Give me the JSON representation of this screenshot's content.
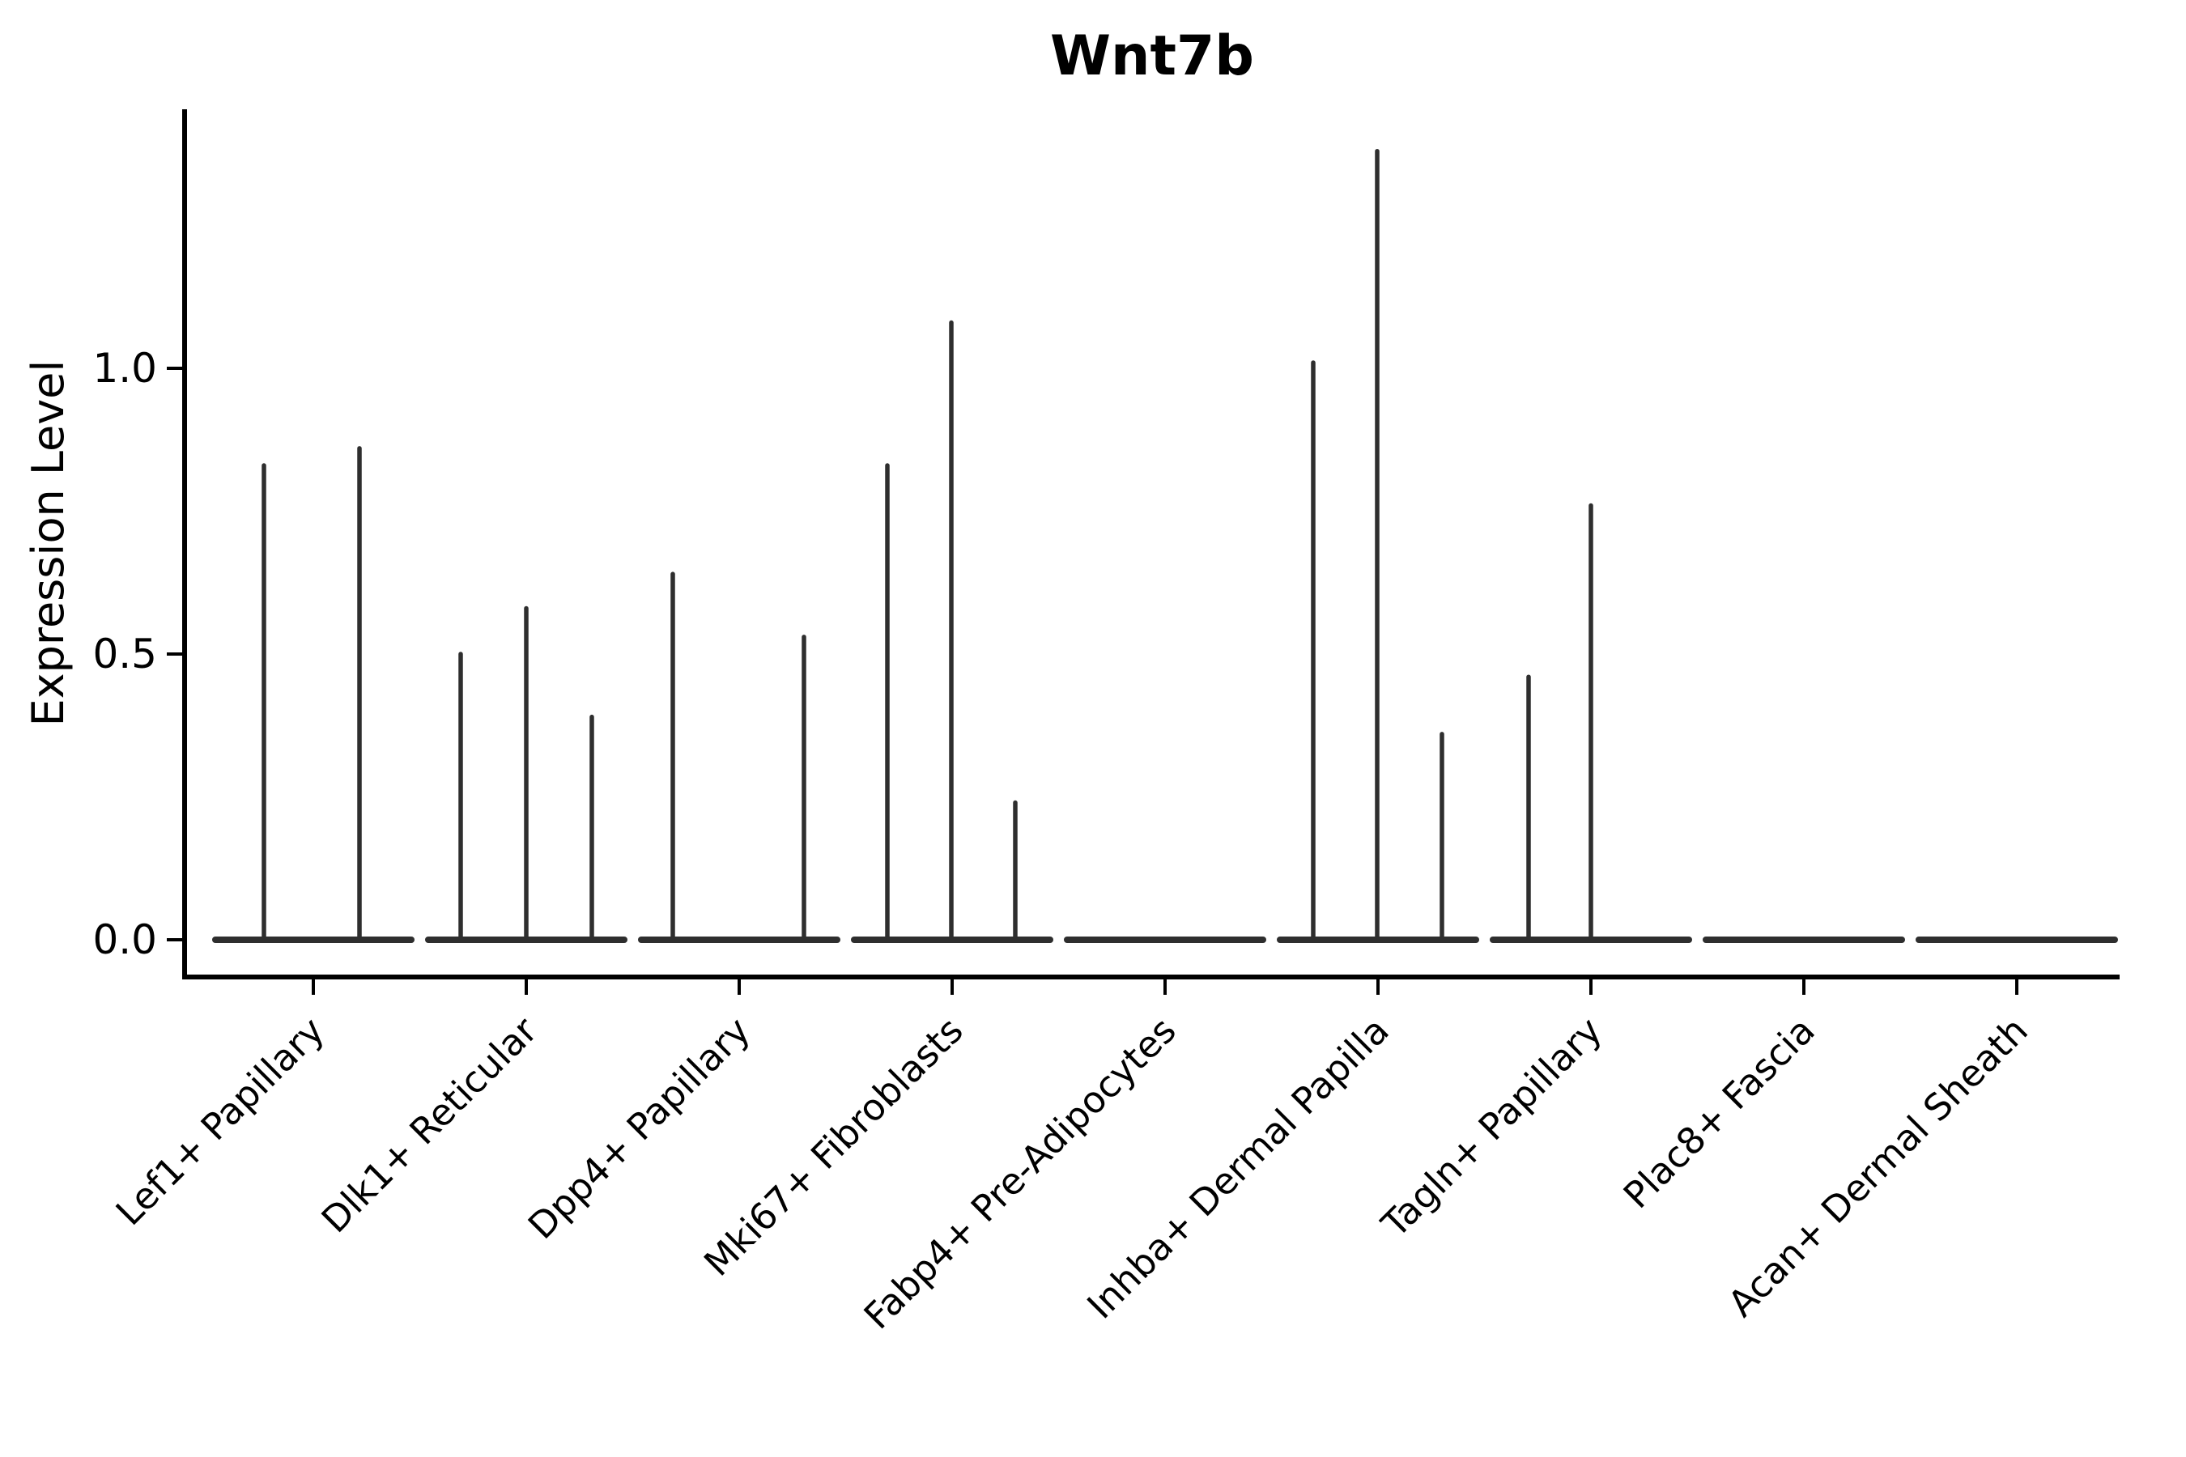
{
  "chart_data": {
    "type": "violin",
    "title": "Wnt7b",
    "ylabel": "Expression Level",
    "xlabel": "",
    "grid": false,
    "legend": "none",
    "ylim": [
      -0.07,
      1.47
    ],
    "yticks": [
      {
        "label": "0.0",
        "value": 0.0
      },
      {
        "label": "0.5",
        "value": 0.5
      },
      {
        "label": "1.0",
        "value": 1.0
      }
    ],
    "categories": [
      "Lef1+ Papillary",
      "Dlk1+ Reticular",
      "Dpp4+ Papillary",
      "Mki67+ Fibroblasts",
      "Fabp4+ Pre-Adipocytes",
      "Inhba+ Dermal Papilla",
      "Tagln+ Papillary",
      "Plac8+ Fascia",
      "Acan+ Dermal Sheath"
    ],
    "violins": [
      {
        "category": "Lef1+ Papillary",
        "baseline_value": 0.0,
        "spikes": [
          {
            "offset": -61,
            "value": 0.83
          },
          {
            "offset": 57,
            "value": 0.86
          }
        ]
      },
      {
        "category": "Dlk1+ Reticular",
        "baseline_value": 0.0,
        "spikes": [
          {
            "offset": -81,
            "value": 0.5
          },
          {
            "offset": 0,
            "value": 0.58
          },
          {
            "offset": 81,
            "value": 0.39
          }
        ]
      },
      {
        "category": "Dpp4+ Papillary",
        "baseline_value": 0.0,
        "spikes": [
          {
            "offset": -82,
            "value": 0.64
          },
          {
            "offset": 80,
            "value": 0.53
          }
        ]
      },
      {
        "category": "Mki67+ Fibroblasts",
        "baseline_value": 0.0,
        "spikes": [
          {
            "offset": -80,
            "value": 0.83
          },
          {
            "offset": -1,
            "value": 1.08
          },
          {
            "offset": 78,
            "value": 0.24
          }
        ]
      },
      {
        "category": "Fabp4+ Pre-Adipocytes",
        "baseline_value": 0.0,
        "spikes": []
      },
      {
        "category": "Inhba+ Dermal Papilla",
        "baseline_value": 0.0,
        "spikes": [
          {
            "offset": -80,
            "value": 1.01
          },
          {
            "offset": -1,
            "value": 1.38
          },
          {
            "offset": 79,
            "value": 0.36
          }
        ]
      },
      {
        "category": "Tagln+ Papillary",
        "baseline_value": 0.0,
        "spikes": [
          {
            "offset": -77,
            "value": 0.46
          },
          {
            "offset": 0,
            "value": 0.76
          }
        ]
      },
      {
        "category": "Plac8+ Fascia",
        "baseline_value": 0.0,
        "spikes": []
      },
      {
        "category": "Acan+ Dermal Sheath",
        "baseline_value": 0.0,
        "spikes": []
      }
    ],
    "colors": {
      "violin": "#2e2e2e",
      "axis": "#000000",
      "text": "#000000",
      "background": "#ffffff"
    }
  }
}
